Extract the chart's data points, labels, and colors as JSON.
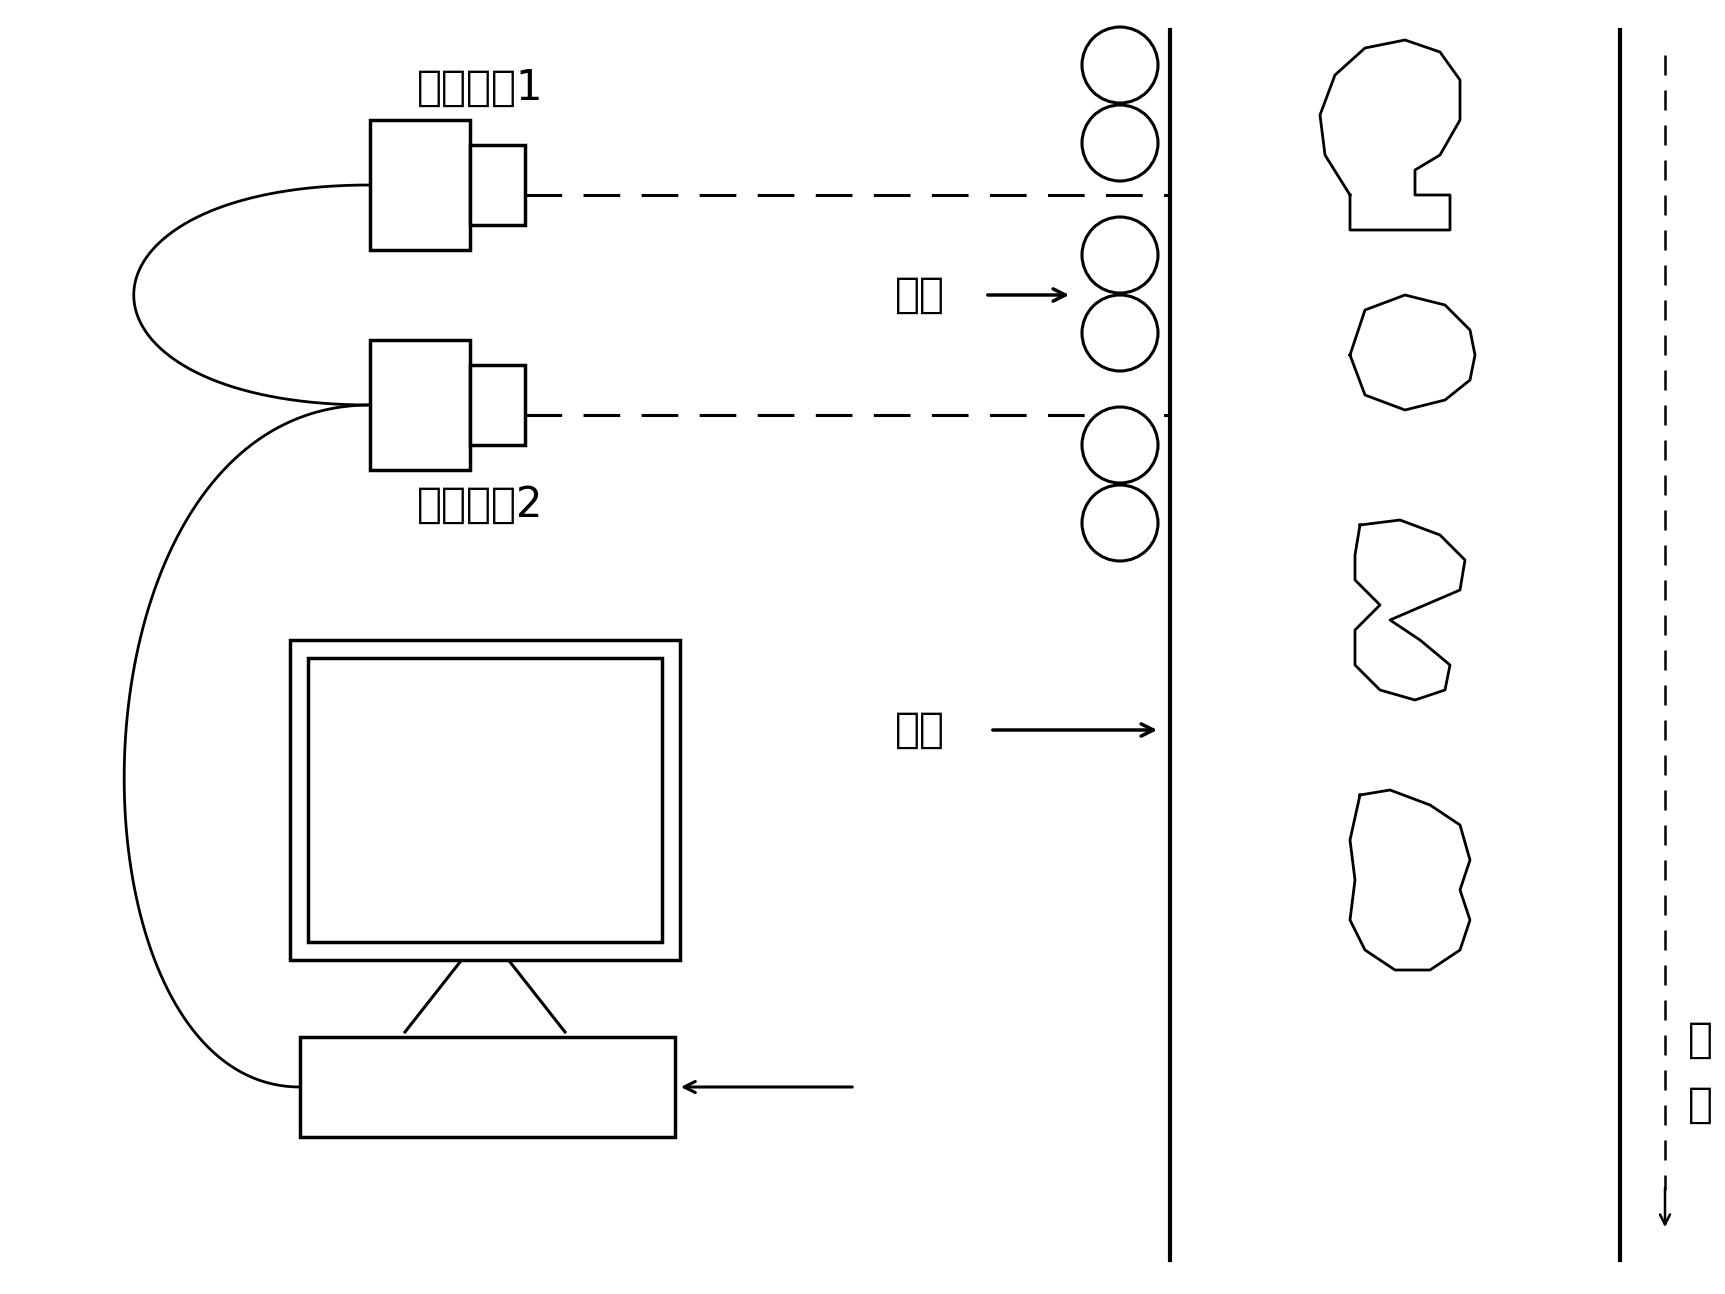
{
  "bg_color": "#ffffff",
  "line_color": "#000000",
  "labels": {
    "camera1": "线阵相机1",
    "camera2": "线阵相机2",
    "light": "光源",
    "channel": "通道",
    "cotton_top": "棉",
    "cotton_bot": "流"
  }
}
